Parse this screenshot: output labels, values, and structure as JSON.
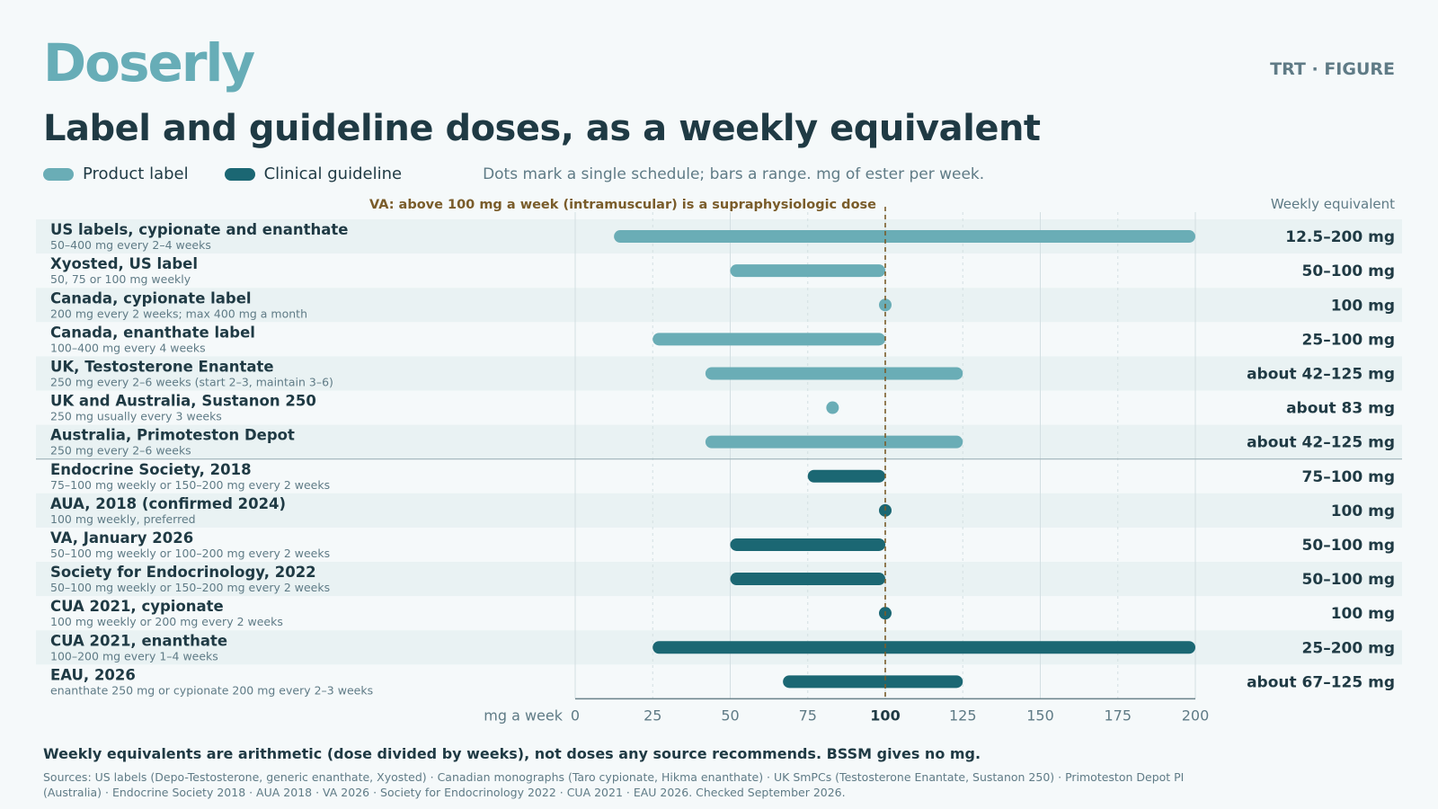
{
  "brand": "Doserly",
  "tag": "TRT · FIGURE",
  "title": "Label and guideline doses, as a weekly equivalent",
  "legend": {
    "label_product": "Product label",
    "label_guideline": "Clinical guideline",
    "note": "Dots mark a single schedule; bars a range. mg of ester per week.",
    "color_product": "#6aadb6",
    "color_guideline": "#1b6773"
  },
  "footnote": "Weekly equivalents are arithmetic (dose divided by weeks), not doses any source recommends. BSSM gives no mg.",
  "sources": "Sources: US labels (Depo-Testosterone, generic enanthate, Xyosted) · Canadian monographs (Taro cypionate, Hikma enanthate) · UK SmPCs (Testosterone Enantate, Sustanon 250) · Primoteston Depot PI (Australia) · Endocrine Society 2018 · AUA 2018 · VA 2026 · Society for Endocrinology 2022 · CUA 2021 · EAU 2026. Checked September 2026.",
  "chart_data": {
    "type": "range-dot",
    "xlabel": "mg a week",
    "xlim": [
      0,
      200
    ],
    "xticks": [
      0,
      25,
      50,
      75,
      100,
      125,
      150,
      175,
      200
    ],
    "right_header": "Weekly equivalent",
    "reference_line": {
      "x": 100,
      "label": "VA: above 100 mg a week (intramuscular) is a supraphysiologic dose",
      "color": "#7a5c2a"
    },
    "rows": [
      {
        "group": "product",
        "name": "US labels, cypionate and enanthate",
        "sub": "50–400 mg every 2–4 weeks",
        "min": 12.5,
        "max": 200,
        "value_label": "12.5–200 mg"
      },
      {
        "group": "product",
        "name": "Xyosted, US label",
        "sub": "50, 75 or 100 mg weekly",
        "min": 50,
        "max": 100,
        "value_label": "50–100 mg"
      },
      {
        "group": "product",
        "name": "Canada, cypionate label",
        "sub": "200 mg every 2 weeks; max 400 mg a month",
        "min": 100,
        "max": 100,
        "value_label": "100 mg"
      },
      {
        "group": "product",
        "name": "Canada, enanthate label",
        "sub": "100–400 mg every 4 weeks",
        "min": 25,
        "max": 100,
        "value_label": "25–100 mg"
      },
      {
        "group": "product",
        "name": "UK, Testosterone Enantate",
        "sub": "250 mg every 2–6 weeks (start 2–3, maintain 3–6)",
        "min": 42,
        "max": 125,
        "value_label": "about 42–125 mg"
      },
      {
        "group": "product",
        "name": "UK and Australia, Sustanon 250",
        "sub": "250 mg usually every 3 weeks",
        "min": 83,
        "max": 83,
        "value_label": "about 83 mg"
      },
      {
        "group": "product",
        "name": "Australia, Primoteston Depot",
        "sub": "250 mg every 2–6 weeks",
        "min": 42,
        "max": 125,
        "value_label": "about 42–125 mg"
      },
      {
        "group": "guideline",
        "name": "Endocrine Society, 2018",
        "sub": "75–100 mg weekly or 150–200 mg every 2 weeks",
        "min": 75,
        "max": 100,
        "value_label": "75–100 mg"
      },
      {
        "group": "guideline",
        "name": "AUA, 2018 (confirmed 2024)",
        "sub": "100 mg weekly, preferred",
        "min": 100,
        "max": 100,
        "value_label": "100 mg"
      },
      {
        "group": "guideline",
        "name": "VA, January 2026",
        "sub": "50–100 mg weekly or 100–200 mg every 2 weeks",
        "min": 50,
        "max": 100,
        "value_label": "50–100 mg"
      },
      {
        "group": "guideline",
        "name": "Society for Endocrinology, 2022",
        "sub": "50–100 mg weekly or 150–200 mg every 2 weeks",
        "min": 50,
        "max": 100,
        "value_label": "50–100 mg"
      },
      {
        "group": "guideline",
        "name": "CUA 2021, cypionate",
        "sub": "100 mg weekly or 200 mg every 2 weeks",
        "min": 100,
        "max": 100,
        "value_label": "100 mg"
      },
      {
        "group": "guideline",
        "name": "CUA 2021, enanthate",
        "sub": "100–200 mg every 1–4 weeks",
        "min": 25,
        "max": 200,
        "value_label": "25–200 mg"
      },
      {
        "group": "guideline",
        "name": "EAU, 2026",
        "sub": "enanthate 250 mg or cypionate 200 mg every 2–3 weeks",
        "min": 67,
        "max": 125,
        "value_label": "about 67–125 mg"
      }
    ]
  }
}
